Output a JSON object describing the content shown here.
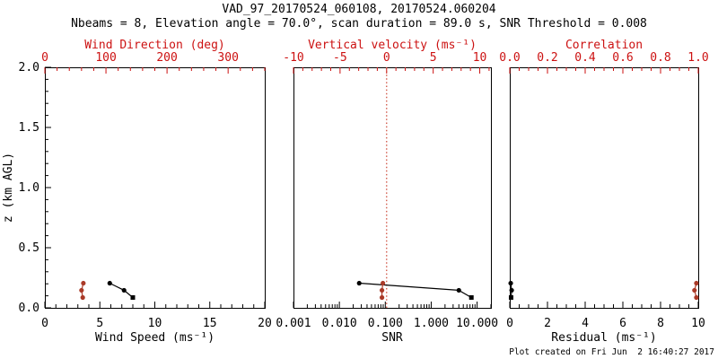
{
  "header": {
    "title": "VAD_97_20170524_060108, 20170524.060204",
    "subtitle": "Nbeams = 8, Elevation angle = 70.0°, scan duration = 89.0 s, SNR Threshold = 0.008"
  },
  "footer": {
    "created": "Plot created on Fri Jun  2 16:40:27 2017"
  },
  "colors": {
    "background": "#ffffff",
    "axis_black": "#000000",
    "axis_accent_red": "#cc1111",
    "series_black": "#000000",
    "series_red": "#aa3a28",
    "refline_red": "#cc4433"
  },
  "chart_data": {
    "type": "scatter",
    "title": "VAD_97_20170524_060108, 20170524.060204",
    "ylabel": "z (km AGL)",
    "ylim": [
      0,
      2
    ],
    "ytick_values": [
      0,
      0.5,
      1,
      1.5,
      2
    ],
    "ytick_labels": [
      "0.0",
      "0.5",
      "1.0",
      "1.5",
      "2.0"
    ],
    "y_minor_step": 0.1,
    "heights_km": [
      0.205,
      0.146,
      0.086
    ],
    "legend": "black symbols use bottom axis, red symbols use top axis",
    "panels": [
      {
        "id": "wind",
        "bottom_axis": {
          "label": "Wind Speed (ms⁻¹)",
          "scale": "linear",
          "min": 0,
          "max": 20,
          "ticks": [
            0,
            5,
            10,
            15,
            20
          ],
          "tick_labels": [
            "0",
            "5",
            "10",
            "15",
            "20"
          ],
          "minor_step": 1,
          "color": "black"
        },
        "top_axis": {
          "label": "Wind Direction (deg)",
          "scale": "linear",
          "min": 0,
          "max": 360,
          "ticks": [
            0,
            100,
            200,
            300
          ],
          "tick_labels": [
            "0",
            "100",
            "200",
            "300"
          ],
          "minor_step": 20,
          "color": "red"
        },
        "series": [
          {
            "name": "wind-speed",
            "axis": "bottom",
            "color": "black",
            "markers": [
              "circle",
              "circle",
              "square"
            ],
            "values": [
              5.9,
              7.2,
              8.0
            ]
          },
          {
            "name": "wind-direction",
            "axis": "top",
            "color": "red",
            "markers": [
              "circle",
              "circle",
              "circle"
            ],
            "values": [
              63,
              60,
              62
            ]
          }
        ]
      },
      {
        "id": "snr",
        "bottom_axis": {
          "label": "SNR",
          "scale": "log",
          "min": 0.001,
          "max": 20,
          "ticks": [
            0.001,
            0.01,
            0.1,
            1,
            10
          ],
          "tick_labels": [
            "0.001",
            "0.010",
            "0.100",
            "1.000",
            "10.000"
          ],
          "color": "black"
        },
        "top_axis": {
          "label": "Vertical velocity (ms⁻¹)",
          "scale": "linear",
          "min": -10,
          "max": 11.2,
          "ticks": [
            -10,
            -5,
            0,
            5,
            10
          ],
          "tick_labels": [
            "-10",
            "-5",
            "0",
            "5",
            "10"
          ],
          "minor_step": 1,
          "color": "red"
        },
        "refline": {
          "axis": "top",
          "value": 0
        },
        "series": [
          {
            "name": "snr",
            "axis": "bottom",
            "color": "black",
            "markers": [
              "circle",
              "circle",
              "square"
            ],
            "values": [
              0.027,
              4.0,
              7.5
            ]
          },
          {
            "name": "vertical-velocity",
            "axis": "top",
            "color": "red",
            "markers": [
              "circle",
              "circle",
              "circle"
            ],
            "values": [
              -0.4,
              -0.5,
              -0.5
            ]
          }
        ]
      },
      {
        "id": "residual",
        "bottom_axis": {
          "label": "Residual (ms⁻¹)",
          "scale": "linear",
          "min": 0,
          "max": 10,
          "ticks": [
            0,
            2,
            4,
            6,
            8,
            10
          ],
          "tick_labels": [
            "0",
            "2",
            "4",
            "6",
            "8",
            "10"
          ],
          "minor_step": 0.5,
          "color": "black"
        },
        "top_axis": {
          "label": "Correlation",
          "scale": "linear",
          "min": 0,
          "max": 1,
          "ticks": [
            0,
            0.2,
            0.4,
            0.6,
            0.8,
            1
          ],
          "tick_labels": [
            "0.0",
            "0.2",
            "0.4",
            "0.6",
            "0.8",
            "1.0"
          ],
          "minor_step": 0.05,
          "color": "red"
        },
        "series": [
          {
            "name": "residual",
            "axis": "bottom",
            "color": "black",
            "markers": [
              "circle",
              "circle",
              "square"
            ],
            "values": [
              0.05,
              0.1,
              0.07
            ]
          },
          {
            "name": "correlation",
            "axis": "top",
            "color": "red",
            "markers": [
              "circle",
              "circle",
              "circle"
            ],
            "values": [
              0.99,
              0.98,
              0.99
            ]
          }
        ]
      }
    ]
  }
}
